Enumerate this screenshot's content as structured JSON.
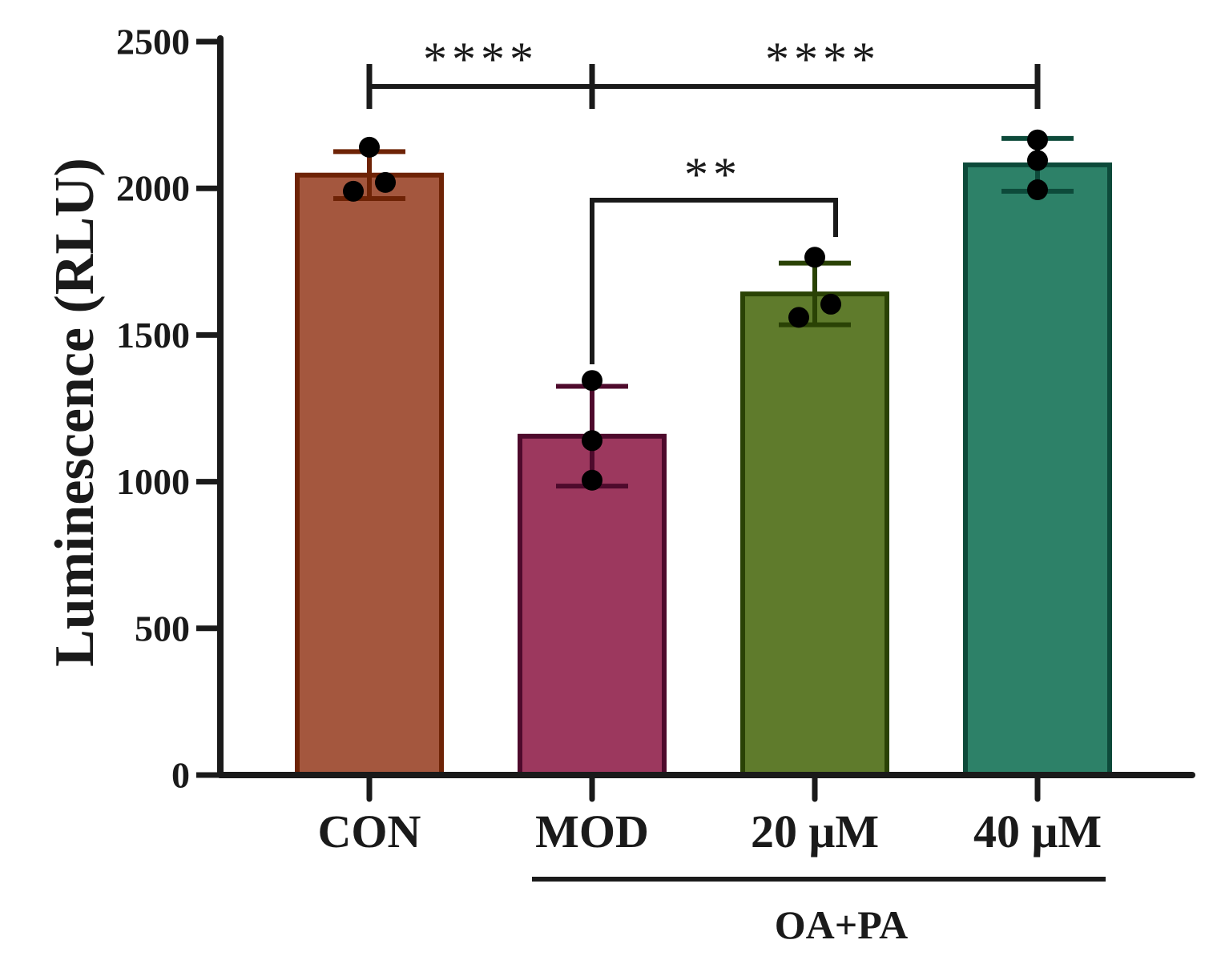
{
  "chart_data": {
    "type": "bar",
    "ylabel": "Luminescence (RLU)",
    "xlabel": "",
    "ylim": [
      0,
      2500
    ],
    "yticks": [
      "0",
      "500",
      "1000",
      "1500",
      "2000",
      "2500"
    ],
    "categories": [
      "CON",
      "MOD",
      "20 μM",
      "40 μM"
    ],
    "values": [
      2045,
      1155,
      1640,
      2080
    ],
    "error": [
      80,
      170,
      105,
      90
    ],
    "points": [
      [
        2140,
        2020,
        1990
      ],
      [
        1345,
        1140,
        1005
      ],
      [
        1765,
        1605,
        1560
      ],
      [
        2165,
        2095,
        1995
      ]
    ],
    "fill_colors": [
      "#a4573e",
      "#9c385e",
      "#5f7b2c",
      "#2d8168"
    ],
    "edge_colors": [
      "#6e2306",
      "#4e0a2c",
      "#2a4205",
      "#0d4a3a"
    ],
    "group_label": {
      "text": "OA+PA",
      "covers": [
        "MOD",
        "20 μM",
        "40 μM"
      ]
    },
    "significance": [
      {
        "from": "CON",
        "to": "MOD",
        "label": "****"
      },
      {
        "from": "MOD",
        "to": "40 μM",
        "label": "****"
      },
      {
        "from": "MOD",
        "to": "20 μM",
        "label": "**"
      }
    ]
  }
}
